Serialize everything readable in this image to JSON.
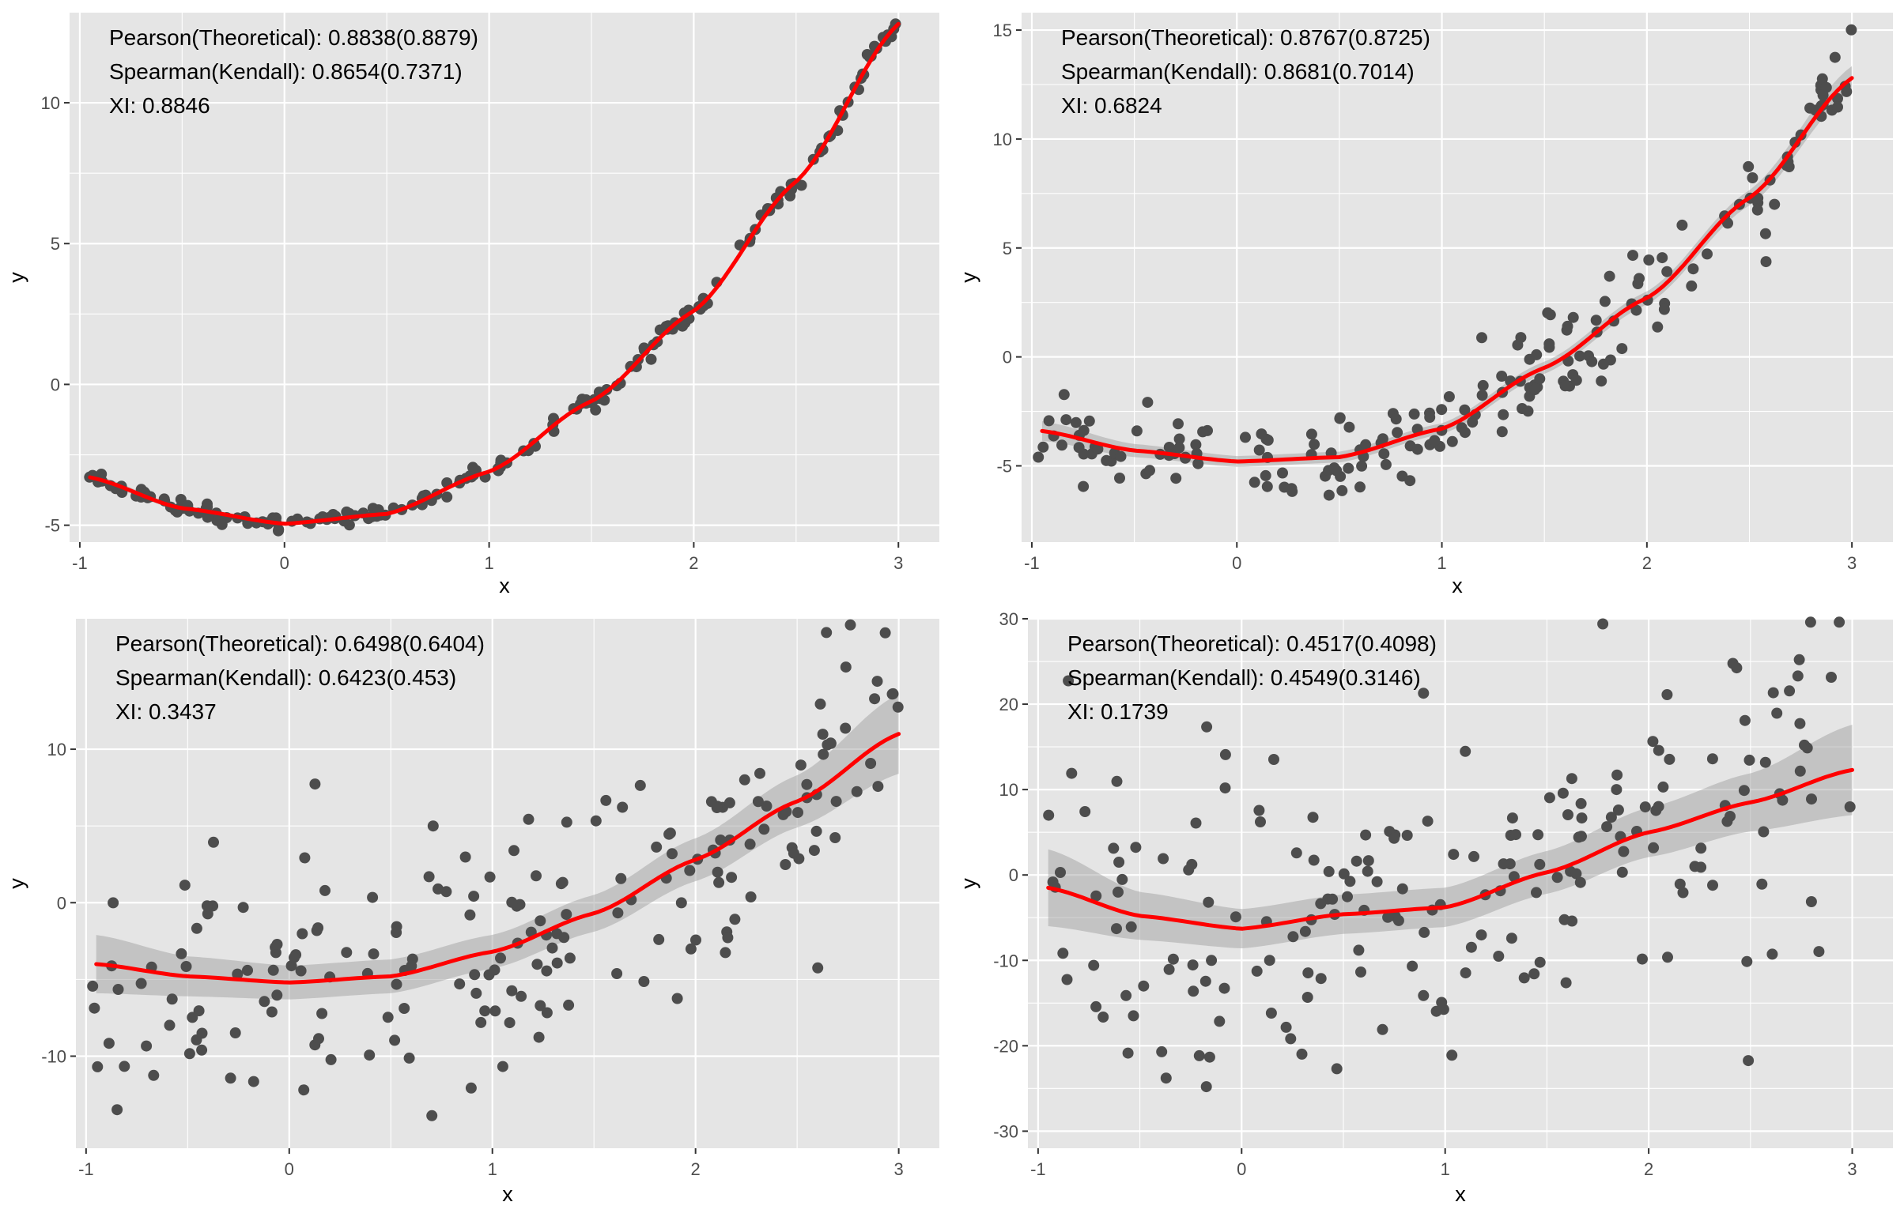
{
  "chart_data": [
    {
      "type": "scatter",
      "panel": "top-left",
      "xlabel": "x",
      "ylabel": "y",
      "xlim": [
        -1.05,
        3.2
      ],
      "ylim": [
        -5.6,
        13.2
      ],
      "x_ticks": [
        -1,
        0,
        1,
        2,
        3
      ],
      "y_ticks": [
        -5,
        0,
        5,
        10
      ],
      "x_tick_labels": [
        "-1",
        "0",
        "1",
        "2",
        "3"
      ],
      "y_tick_labels": [
        "-5",
        "0",
        "5",
        "10"
      ],
      "annotations": [
        "Pearson(Theoretical): 0.8838(0.8879)",
        "Spearman(Kendall): 0.8654(0.7371)",
        "XI: 0.8846"
      ],
      "noise_sd": 0.15,
      "series": [
        {
          "kind": "points",
          "color": "#4d4d4d"
        },
        {
          "kind": "smooth-fit",
          "color": "#ff0000",
          "band_color": "#999999"
        }
      ],
      "fit": {
        "x": [
          -0.95,
          -0.5,
          0,
          0.5,
          1,
          1.5,
          2,
          2.5,
          3
        ],
        "y": [
          -3.3,
          -4.4,
          -4.95,
          -4.6,
          -3.1,
          -0.6,
          2.6,
          7.2,
          12.8
        ],
        "band_halfwidth": [
          0.12,
          0.08,
          0.07,
          0.07,
          0.07,
          0.07,
          0.08,
          0.09,
          0.15
        ]
      }
    },
    {
      "type": "scatter",
      "panel": "top-right",
      "xlabel": "x",
      "ylabel": "y",
      "xlim": [
        -1.05,
        3.2
      ],
      "ylim": [
        -8.5,
        15.8
      ],
      "x_ticks": [
        -1,
        0,
        1,
        2,
        3
      ],
      "y_ticks": [
        -5,
        0,
        5,
        10,
        15
      ],
      "x_tick_labels": [
        "-1",
        "0",
        "1",
        "2",
        "3"
      ],
      "y_tick_labels": [
        "-5",
        "0",
        "5",
        "10",
        "15"
      ],
      "annotations": [
        "Pearson(Theoretical): 0.8767(0.8725)",
        "Spearman(Kendall): 0.8681(0.7014)",
        "XI: 0.6824"
      ],
      "noise_sd": 1.0,
      "series": [
        {
          "kind": "points",
          "color": "#4d4d4d"
        },
        {
          "kind": "smooth-fit",
          "color": "#ff0000",
          "band_color": "#999999"
        }
      ],
      "fit": {
        "x": [
          -0.95,
          -0.5,
          0,
          0.5,
          1,
          1.5,
          2,
          2.5,
          3
        ],
        "y": [
          -3.4,
          -4.3,
          -4.8,
          -4.6,
          -3.3,
          -0.5,
          2.7,
          7.3,
          12.8
        ],
        "band_halfwidth": [
          0.45,
          0.3,
          0.25,
          0.25,
          0.25,
          0.28,
          0.3,
          0.35,
          0.55
        ]
      }
    },
    {
      "type": "scatter",
      "panel": "bottom-left",
      "xlabel": "x",
      "ylabel": "y",
      "xlim": [
        -1.05,
        3.2
      ],
      "ylim": [
        -16,
        18.5
      ],
      "x_ticks": [
        -1,
        0,
        1,
        2,
        3
      ],
      "y_ticks": [
        -10,
        0,
        10
      ],
      "x_tick_labels": [
        "-1",
        "0",
        "1",
        "2",
        "3"
      ],
      "y_tick_labels": [
        "-10",
        "0",
        "10"
      ],
      "annotations": [
        "Pearson(Theoretical): 0.6498(0.6404)",
        "Spearman(Kendall): 0.6423(0.453)",
        "XI: 0.3437"
      ],
      "noise_sd": 4.3,
      "series": [
        {
          "kind": "points",
          "color": "#4d4d4d"
        },
        {
          "kind": "smooth-fit",
          "color": "#ff0000",
          "band_color": "#999999"
        }
      ],
      "fit": {
        "x": [
          -0.95,
          -0.5,
          0,
          0.5,
          1,
          1.5,
          2,
          2.5,
          3
        ],
        "y": [
          -4.0,
          -4.8,
          -5.2,
          -4.8,
          -3.2,
          -0.7,
          2.8,
          6.6,
          11.0
        ],
        "band_halfwidth": [
          1.9,
          1.3,
          1.1,
          1.1,
          1.1,
          1.2,
          1.4,
          1.7,
          2.6
        ]
      }
    },
    {
      "type": "scatter",
      "panel": "bottom-right",
      "xlabel": "x",
      "ylabel": "y",
      "xlim": [
        -1.05,
        3.2
      ],
      "ylim": [
        -32,
        30
      ],
      "x_ticks": [
        -1,
        0,
        1,
        2,
        3
      ],
      "y_ticks": [
        -30,
        -20,
        -10,
        0,
        10,
        20,
        30
      ],
      "x_tick_labels": [
        "-1",
        "0",
        "1",
        "2",
        "3"
      ],
      "y_tick_labels": [
        "-30",
        "-20",
        "-10",
        "0",
        "10",
        "20",
        "30"
      ],
      "annotations": [
        "Pearson(Theoretical): 0.4517(0.4098)",
        "Spearman(Kendall): 0.4549(0.3146)",
        "XI: 0.1739"
      ],
      "noise_sd": 10.0,
      "series": [
        {
          "kind": "points",
          "color": "#4d4d4d"
        },
        {
          "kind": "smooth-fit",
          "color": "#ff0000",
          "band_color": "#999999"
        }
      ],
      "fit": {
        "x": [
          -0.95,
          -0.5,
          0,
          0.5,
          1,
          1.5,
          2,
          2.5,
          3
        ],
        "y": [
          -1.5,
          -4.8,
          -6.3,
          -4.6,
          -3.8,
          0.3,
          5.0,
          8.5,
          12.3
        ],
        "band_halfwidth": [
          4.5,
          2.8,
          2.3,
          2.3,
          2.3,
          2.5,
          2.9,
          3.4,
          5.3
        ]
      }
    }
  ]
}
